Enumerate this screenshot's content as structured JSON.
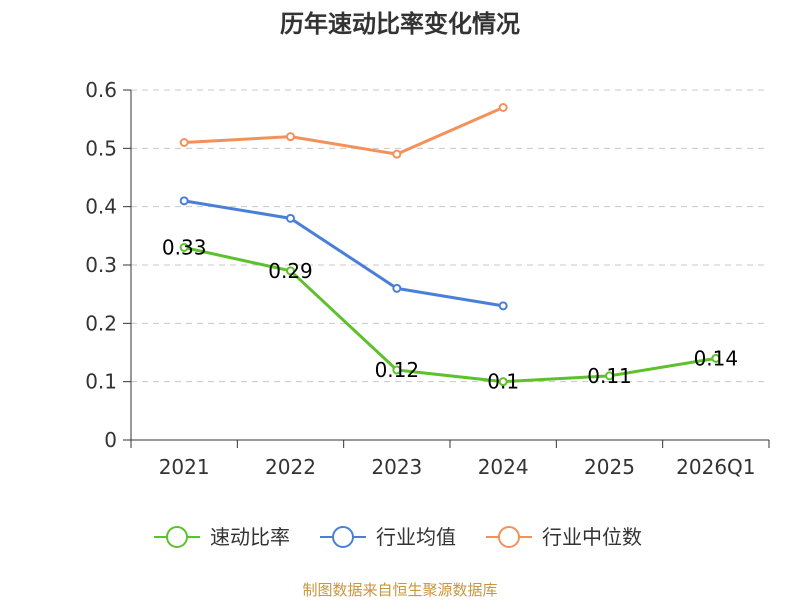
{
  "chart_data": {
    "type": "line",
    "title": "历年速动比率变化情况",
    "categories": [
      "2021",
      "2022",
      "2023",
      "2024",
      "2025",
      "2026Q1"
    ],
    "y_ticks": [
      "0",
      "0.1",
      "0.2",
      "0.3",
      "0.4",
      "0.5",
      "0.6"
    ],
    "ylim": [
      0,
      0.6
    ],
    "grid": true,
    "legend_position": "bottom",
    "series": [
      {
        "name": "速动比率",
        "color": "#5dc12c",
        "values": [
          0.33,
          0.29,
          0.12,
          0.1,
          0.11,
          0.14
        ],
        "labels": [
          "0.33",
          "0.29",
          "0.12",
          "0.1",
          "0.11",
          "0.14"
        ],
        "show_labels": true
      },
      {
        "name": "行业均值",
        "color": "#4a7fd9",
        "values": [
          0.41,
          0.38,
          0.26,
          0.23,
          null,
          null
        ],
        "show_labels": false
      },
      {
        "name": "行业中位数",
        "color": "#f4915a",
        "values": [
          0.51,
          0.52,
          0.49,
          0.57,
          null,
          null
        ],
        "show_labels": false
      }
    ]
  },
  "source": "制图数据来自恒生聚源数据库"
}
